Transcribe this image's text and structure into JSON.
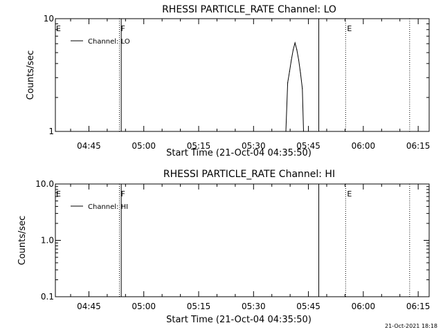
{
  "chart_data": [
    {
      "type": "line",
      "title": "RHESSI PARTICLE_RATE Channel: LO",
      "xlabel": "Start Time (21-Oct-04 04:35:50)",
      "ylabel": "Counts/sec",
      "yscale": "log",
      "ylim": [
        1,
        10
      ],
      "xlim": [
        "04:35:50",
        "06:18:00"
      ],
      "ytick_labels": [
        "1",
        "10"
      ],
      "yticks": [
        1,
        10
      ],
      "xticks": [
        "04:45",
        "05:00",
        "05:15",
        "05:30",
        "05:45",
        "06:00",
        "06:15"
      ],
      "legend_position": "top-left",
      "grid": false,
      "series": [
        {
          "name": "Channel: LO",
          "color": "#000000",
          "x": [
            "05:38:50",
            "05:39:20",
            "05:39:50",
            "05:40:20",
            "05:40:50",
            "05:41:20",
            "05:41:50",
            "05:42:20",
            "05:42:50",
            "05:43:20",
            "05:43:40"
          ],
          "values": [
            1.0,
            2.7,
            3.4,
            4.3,
            5.3,
            6.1,
            5.3,
            4.3,
            3.3,
            2.4,
            1.0
          ]
        }
      ],
      "markers": [
        {
          "time": "04:53:20",
          "style": "dotted",
          "label": "F"
        },
        {
          "time": "04:53:50",
          "style": "solid",
          "label": ""
        },
        {
          "time": "05:47:50",
          "style": "solid",
          "label": ""
        },
        {
          "time": "05:55:10",
          "style": "dotted",
          "label": "E"
        },
        {
          "time": "06:12:40",
          "style": "dotted",
          "label": ""
        }
      ],
      "corner_label": "E"
    },
    {
      "type": "line",
      "title": "RHESSI PARTICLE_RATE Channel: HI",
      "xlabel": "Start Time (21-Oct-04 04:35:50)",
      "ylabel": "Counts/sec",
      "yscale": "log",
      "ylim": [
        0.1,
        10
      ],
      "xlim": [
        "04:35:50",
        "06:18:00"
      ],
      "ytick_labels": [
        "0.1",
        "1.0",
        "10.0"
      ],
      "yticks": [
        0.1,
        1,
        10
      ],
      "xticks": [
        "04:45",
        "05:00",
        "05:15",
        "05:30",
        "05:45",
        "06:00",
        "06:15"
      ],
      "legend_position": "top-left",
      "grid": false,
      "series": [
        {
          "name": "Channel: HI",
          "color": "#000000",
          "x": [],
          "values": []
        }
      ],
      "markers": [
        {
          "time": "04:53:20",
          "style": "dotted",
          "label": "F"
        },
        {
          "time": "04:53:50",
          "style": "solid",
          "label": ""
        },
        {
          "time": "05:47:50",
          "style": "solid",
          "label": ""
        },
        {
          "time": "05:55:10",
          "style": "dotted",
          "label": "E"
        },
        {
          "time": "06:12:40",
          "style": "dotted",
          "label": ""
        }
      ],
      "corner_label": "E"
    }
  ],
  "footer": {
    "timestamp": "21-Oct-2021 18:18"
  }
}
